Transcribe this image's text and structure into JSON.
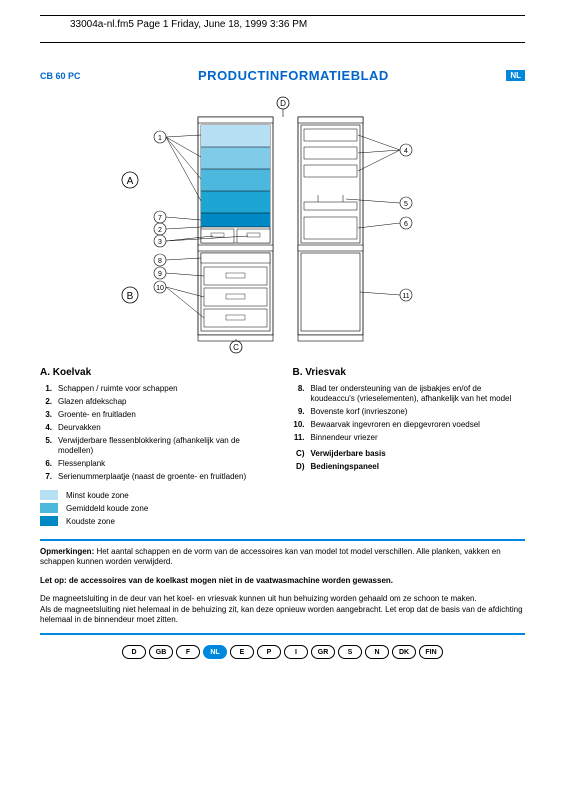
{
  "header": "33004a-nl.fm5  Page 1  Friday, June 18, 1999  3:36 PM",
  "model": "CB 60 PC",
  "title": "PRODUCTINFORMATIEBLAD",
  "lang_badge": "NL",
  "diagram": {
    "labels": {
      "A": "A",
      "B": "B",
      "C": "C",
      "D": "D"
    },
    "callouts": [
      "1",
      "2",
      "3",
      "4",
      "5",
      "6",
      "7",
      "8",
      "9",
      "10",
      "11"
    ],
    "shelf_colors": [
      "#b8e0f5",
      "#7fcbe8",
      "#4db8de",
      "#1da5d4",
      "#0088c4"
    ],
    "line_color": "#000000",
    "bg": "#ffffff"
  },
  "sectionA": {
    "title": "A.    Koelvak",
    "items": [
      {
        "n": "1.",
        "t": "Schappen / ruimte voor schappen"
      },
      {
        "n": "2.",
        "t": "Glazen afdekschap"
      },
      {
        "n": "3.",
        "t": "Groente- en fruitladen"
      },
      {
        "n": "4.",
        "t": "Deurvakken"
      },
      {
        "n": "5.",
        "t": "Verwijderbare flessenblokkering (afhankelijk van de modellen)"
      },
      {
        "n": "6.",
        "t": "Flessenplank"
      },
      {
        "n": "7.",
        "t": "Serienummerplaatje (naast de groente- en fruitladen)"
      }
    ]
  },
  "sectionB": {
    "title": "B.    Vriesvak",
    "items": [
      {
        "n": "8.",
        "t": "Blad ter ondersteuning van de ijsbakjes en/of de koudeaccu's (vrieselementen), afhankelijk van het model"
      },
      {
        "n": "9.",
        "t": "Bovenste korf (invrieszone)"
      },
      {
        "n": "10.",
        "t": "Bewaarvak ingevroren en diepgevroren voedsel"
      },
      {
        "n": "11.",
        "t": "Binnendeur vriezer"
      }
    ],
    "extra": [
      {
        "n": "C)",
        "t": "Verwijderbare basis"
      },
      {
        "n": "D)",
        "t": "Bedieningspaneel"
      }
    ]
  },
  "legend": [
    {
      "color": "#b8e0f5",
      "label": "Minst koude zone"
    },
    {
      "color": "#4db8de",
      "label": "Gemiddeld koude zone"
    },
    {
      "color": "#0088c4",
      "label": "Koudste zone"
    }
  ],
  "notes1": {
    "label": "Opmerkingen:",
    "text": " Het aantal schappen en de vorm van de accessoires kan van model tot model verschillen. Alle planken, vakken en schappen kunnen worden verwijderd."
  },
  "notes2": {
    "label": "Let op: de accessoires van de koelkast mogen niet in de vaatwasmachine worden gewassen."
  },
  "notes3": "De magneetsluiting in de deur van het koel- en vriesvak kunnen uit hun behuizing worden gehaald om ze schoon te maken.\nAls de magneetsluiting niet helemaal in de behuizing zit, kan deze opnieuw worden aangebracht. Let erop dat de basis van de afdichting helemaal in de binnendeur moet zitten.",
  "languages": [
    "D",
    "GB",
    "F",
    "NL",
    "E",
    "P",
    "I",
    "GR",
    "S",
    "N",
    "DK",
    "FIN"
  ],
  "active_lang": "NL"
}
